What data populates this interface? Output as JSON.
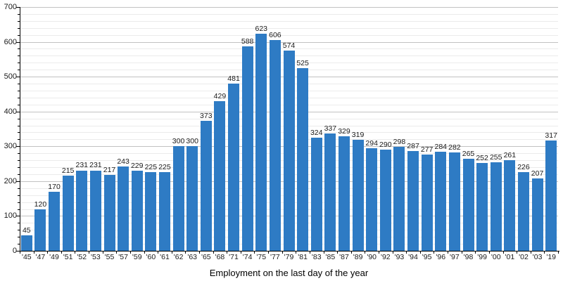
{
  "chart_data": {
    "type": "bar",
    "title": "",
    "xlabel": "Employment on the last day of the year",
    "ylabel": "",
    "ylim": [
      0,
      700
    ],
    "y_major_step": 100,
    "y_minor_step": 20,
    "y_tick_labels": [
      "0",
      "100",
      "200",
      "300",
      "400",
      "500",
      "600",
      "700"
    ],
    "grid": "on",
    "legend": "none",
    "bar_color": "#2e7bc4",
    "categories": [
      "'45",
      "'47",
      "'49",
      "'51",
      "'52",
      "'53",
      "'55",
      "'57",
      "'59",
      "'60",
      "'61",
      "'62",
      "'63",
      "'65",
      "'68",
      "'71",
      "'74",
      "'75",
      "'77",
      "'79",
      "'81",
      "'83",
      "'85",
      "'87",
      "'89",
      "'90",
      "'92",
      "'93",
      "'94",
      "'95",
      "'96",
      "'97",
      "'98",
      "'99",
      "'00",
      "'01",
      "'02",
      "'03",
      "'19"
    ],
    "values": [
      45,
      120,
      170,
      215,
      231,
      231,
      217,
      243,
      229,
      225,
      225,
      300,
      300,
      373,
      429,
      481,
      588,
      623,
      606,
      574,
      525,
      324,
      337,
      329,
      319,
      294,
      290,
      298,
      287,
      277,
      284,
      282,
      265,
      252,
      255,
      261,
      226,
      207,
      317
    ]
  },
  "colors": {
    "bar": "#2e7bc4",
    "grid_major": "#c2c2c2",
    "grid_minor": "#ebebeb",
    "axis": "#000000",
    "text": "#1a1a1a",
    "background": "#ffffff"
  }
}
